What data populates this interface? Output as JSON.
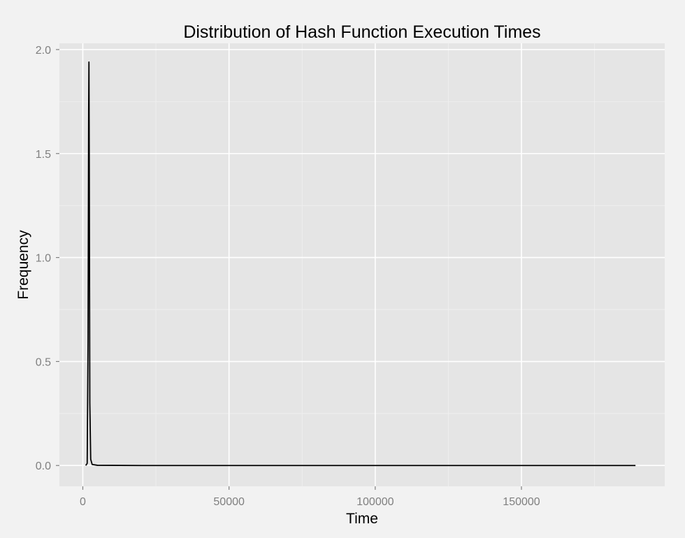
{
  "chart_data": {
    "type": "line",
    "title": "Distribution of Hash Function Execution Times",
    "xlabel": "Time",
    "ylabel": "Frequency",
    "xlim": [
      -8000,
      199000
    ],
    "ylim": [
      -0.1,
      2.03
    ],
    "x_ticks": [
      0,
      50000,
      100000,
      150000
    ],
    "x_tick_labels": [
      "0",
      "50000",
      "100000",
      "150000"
    ],
    "y_ticks": [
      0.0,
      0.5,
      1.0,
      1.5,
      2.0
    ],
    "y_tick_labels": [
      "0.0",
      "0.5",
      "1.0",
      "1.5",
      "2.0"
    ],
    "grid": true,
    "legend": "none",
    "background_color": "#e5e5e5",
    "line_color": "#000000",
    "series": [
      {
        "x": [
          1000,
          1500,
          1800,
          2000,
          2100,
          2200,
          2400,
          2700,
          3200,
          5000,
          20000,
          60000,
          100000,
          150000,
          189000
        ],
        "y": [
          0.0,
          0.01,
          0.6,
          1.7,
          1.94,
          1.5,
          0.3,
          0.03,
          0.005,
          0.001,
          0.0,
          0.0,
          0.0,
          0.0,
          0.0
        ]
      }
    ]
  }
}
